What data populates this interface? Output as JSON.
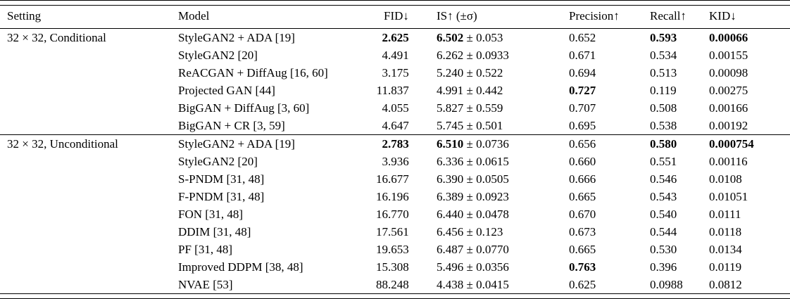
{
  "page": {
    "background": "#ffffff",
    "text_color": "#000000"
  },
  "table": {
    "columns": [
      {
        "key": "setting",
        "label": "Setting"
      },
      {
        "key": "model",
        "label": "Model"
      },
      {
        "key": "fid",
        "label": "FID↓"
      },
      {
        "key": "is",
        "label": "IS↑ (±σ)"
      },
      {
        "key": "precision",
        "label": "Precision↑"
      },
      {
        "key": "recall",
        "label": "Recall↑"
      },
      {
        "key": "kid",
        "label": "KID↓"
      }
    ],
    "plus_minus": "±",
    "sections": [
      {
        "setting": "32 × 32, Conditional",
        "rows": [
          {
            "model": "StyleGAN2 + ADA [19]",
            "fid": "2.625",
            "is_mean": "6.502",
            "is_std": "0.053",
            "precision": "0.652",
            "recall": "0.593",
            "kid": "0.00066",
            "bold": [
              "fid",
              "is_mean",
              "recall",
              "kid"
            ]
          },
          {
            "model": "StyleGAN2 [20]",
            "fid": "4.491",
            "is_mean": "6.262",
            "is_std": "0.0933",
            "precision": "0.671",
            "recall": "0.534",
            "kid": "0.00155",
            "bold": []
          },
          {
            "model": "ReACGAN + DiffAug [16, 60]",
            "fid": "3.175",
            "is_mean": "5.240",
            "is_std": "0.522",
            "precision": "0.694",
            "recall": "0.513",
            "kid": "0.00098",
            "bold": []
          },
          {
            "model": "Projected GAN [44]",
            "fid": "11.837",
            "is_mean": "4.991",
            "is_std": "0.442",
            "precision": "0.727",
            "recall": "0.119",
            "kid": "0.00275",
            "bold": [
              "precision"
            ]
          },
          {
            "model": "BigGAN + DiffAug [3, 60]",
            "fid": "4.055",
            "is_mean": "5.827",
            "is_std": "0.559",
            "precision": "0.707",
            "recall": "0.508",
            "kid": "0.00166",
            "bold": []
          },
          {
            "model": "BigGAN + CR [3, 59]",
            "fid": "4.647",
            "is_mean": "5.745",
            "is_std": "0.501",
            "precision": "0.695",
            "recall": "0.538",
            "kid": "0.00192",
            "bold": []
          }
        ]
      },
      {
        "setting": "32 × 32, Unconditional",
        "rows": [
          {
            "model": "StyleGAN2 + ADA [19]",
            "fid": "2.783",
            "is_mean": "6.510",
            "is_std": "0.0736",
            "precision": "0.656",
            "recall": "0.580",
            "kid": "0.000754",
            "bold": [
              "fid",
              "is_mean",
              "recall",
              "kid"
            ]
          },
          {
            "model": "StyleGAN2 [20]",
            "fid": "3.936",
            "is_mean": "6.336",
            "is_std": "0.0615",
            "precision": "0.660",
            "recall": "0.551",
            "kid": "0.00116",
            "bold": []
          },
          {
            "model": "S-PNDM [31, 48]",
            "fid": "16.677",
            "is_mean": "6.390",
            "is_std": "0.0505",
            "precision": "0.666",
            "recall": "0.546",
            "kid": "0.0108",
            "bold": []
          },
          {
            "model": "F-PNDM [31, 48]",
            "fid": "16.196",
            "is_mean": "6.389",
            "is_std": "0.0923",
            "precision": "0.665",
            "recall": "0.543",
            "kid": "0.01051",
            "bold": []
          },
          {
            "model": "FON [31, 48]",
            "fid": "16.770",
            "is_mean": "6.440",
            "is_std": "0.0478",
            "precision": "0.670",
            "recall": "0.540",
            "kid": "0.0111",
            "bold": []
          },
          {
            "model": "DDIM [31, 48]",
            "fid": "17.561",
            "is_mean": "6.456",
            "is_std": "0.123",
            "precision": "0.673",
            "recall": "0.544",
            "kid": "0.0118",
            "bold": []
          },
          {
            "model": "PF [31, 48]",
            "fid": "19.653",
            "is_mean": "6.487",
            "is_std": "0.0770",
            "precision": "0.665",
            "recall": "0.530",
            "kid": "0.0134",
            "bold": []
          },
          {
            "model": "Improved DDPM [38, 48]",
            "fid": "15.308",
            "is_mean": "5.496",
            "is_std": "0.0356",
            "precision": "0.763",
            "recall": "0.396",
            "kid": "0.0119",
            "bold": [
              "precision"
            ]
          },
          {
            "model": "NVAE [53]",
            "fid": "88.248",
            "is_mean": "4.438",
            "is_std": "0.0415",
            "precision": "0.625",
            "recall": "0.0988",
            "kid": "0.0812",
            "bold": []
          }
        ]
      }
    ]
  }
}
